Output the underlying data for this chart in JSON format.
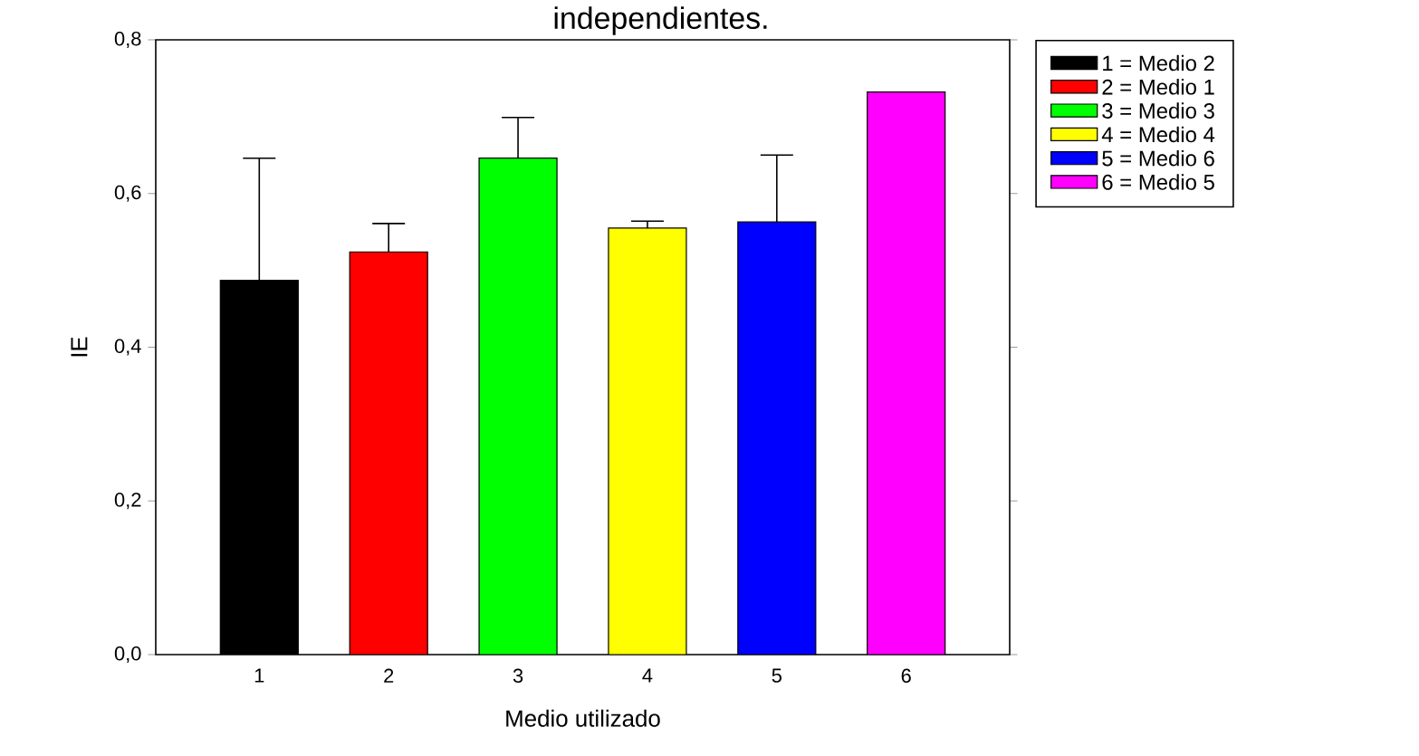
{
  "chart_data": {
    "type": "bar",
    "title": "independientes.",
    "xlabel": "Medio utilizado",
    "ylabel": "IE",
    "categories": [
      "1",
      "2",
      "3",
      "4",
      "5",
      "6"
    ],
    "series": [
      {
        "name": "1 = Medio 2",
        "color": "#000000",
        "values": [
          0.487,
          null,
          null,
          null,
          null,
          null
        ],
        "errors": [
          [
            0.487,
            0.646
          ],
          null,
          null,
          null,
          null,
          null
        ]
      },
      {
        "name": "2 = Medio 1",
        "color": "#ff0000",
        "values": [
          null,
          0.524,
          null,
          null,
          null,
          null
        ],
        "errors": [
          null,
          [
            0.524,
            0.561
          ],
          null,
          null,
          null,
          null
        ]
      },
      {
        "name": "3 = Medio 3",
        "color": "#00ff00",
        "values": [
          null,
          null,
          0.646,
          null,
          null,
          null
        ],
        "errors": [
          null,
          null,
          [
            0.646,
            0.699
          ],
          null,
          null,
          null
        ]
      },
      {
        "name": "4 = Medio 4",
        "color": "#ffff00",
        "values": [
          null,
          null,
          null,
          0.555,
          null,
          null
        ],
        "errors": [
          null,
          null,
          null,
          [
            0.555,
            0.564
          ],
          null,
          null
        ]
      },
      {
        "name": "5 = Medio 6",
        "color": "#0000ff",
        "values": [
          null,
          null,
          null,
          null,
          0.563,
          null
        ],
        "errors": [
          null,
          null,
          null,
          null,
          [
            0.563,
            0.65
          ],
          null
        ]
      },
      {
        "name": "6 = Medio 5",
        "color": "#ff00ff",
        "values": [
          null,
          null,
          null,
          null,
          null,
          0.732
        ]
      }
    ],
    "ylim": [
      0,
      0.8
    ],
    "yticks": [
      {
        "value": 0,
        "label": "0,0"
      },
      {
        "value": 0.2,
        "label": "0,2"
      },
      {
        "value": 0.4,
        "label": "0,4"
      },
      {
        "value": 0.6,
        "label": "0,6"
      },
      {
        "value": 0.8,
        "label": "0,8"
      }
    ],
    "legend": "right",
    "grid": false
  }
}
